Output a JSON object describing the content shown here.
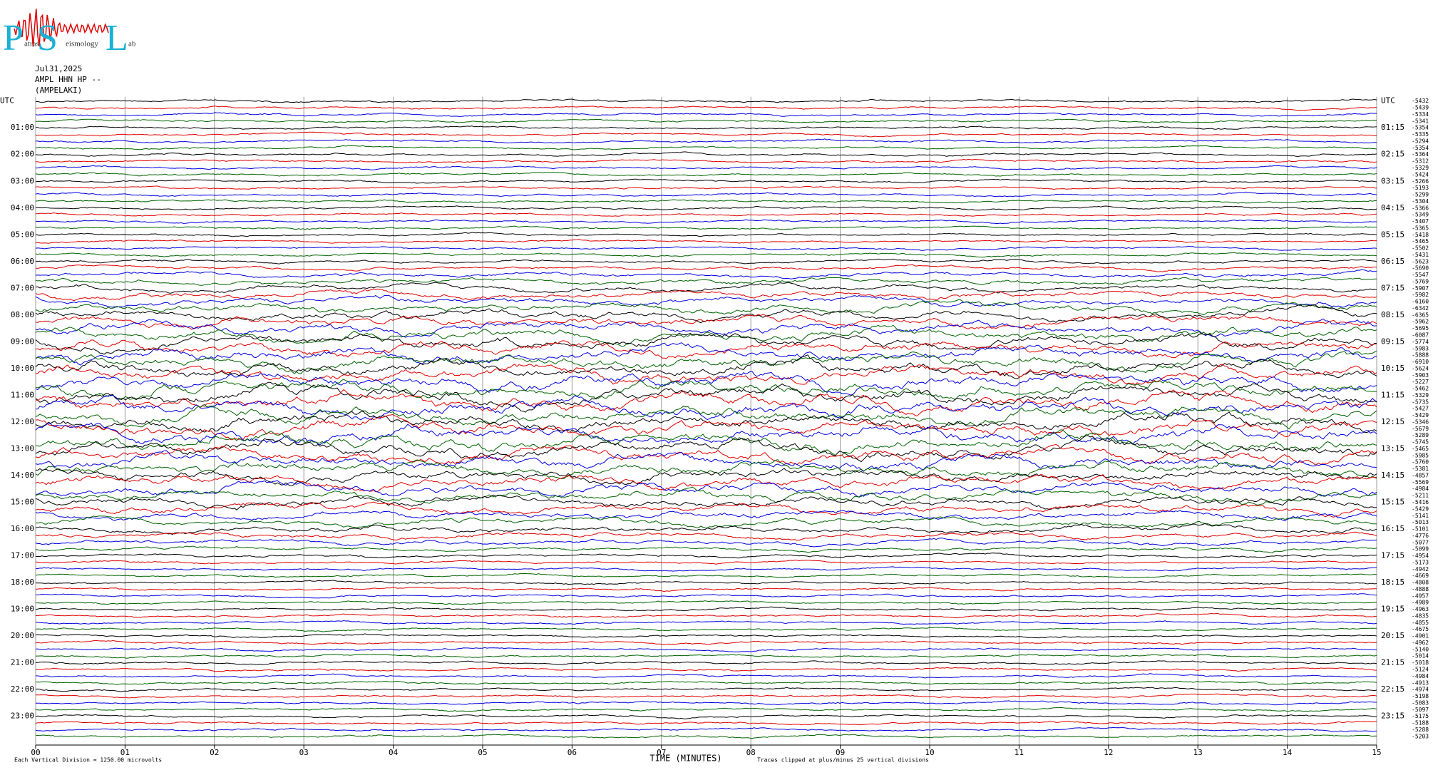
{
  "chart_data": {
    "type": "helicorder",
    "logo": {
      "letters": [
        "P",
        "S",
        "L"
      ],
      "words": [
        "atras",
        "eismology",
        "ab"
      ]
    },
    "date": "Jul31,2025",
    "station": "AMPL HHN HP --",
    "site": "(AMPELAKI)",
    "left_row_labels": [
      "UTC",
      "01:00",
      "02:00",
      "03:00",
      "04:00",
      "05:00",
      "06:00",
      "07:00",
      "08:00",
      "09:00",
      "10:00",
      "11:00",
      "12:00",
      "13:00",
      "14:00",
      "15:00",
      "16:00",
      "17:00",
      "18:00",
      "19:00",
      "20:00",
      "21:00",
      "22:00",
      "23:00"
    ],
    "right_row_labels": [
      "UTC",
      "01:15",
      "02:15",
      "03:15",
      "04:15",
      "05:15",
      "06:15",
      "07:15",
      "08:15",
      "09:15",
      "10:15",
      "11:15",
      "12:15",
      "13:15",
      "14:15",
      "15:15",
      "16:15",
      "17:15",
      "18:15",
      "19:15",
      "20:15",
      "21:15",
      "22:15",
      "23:15"
    ],
    "trace_means": [
      -5432,
      -5439,
      -5334,
      -5341,
      -5354,
      -5335,
      -5294,
      -5354,
      -5364,
      -5312,
      -5329,
      -5424,
      -5266,
      -5193,
      -5299,
      -5304,
      -5366,
      -5349,
      -5407,
      -5365,
      -5418,
      -5465,
      -5502,
      -5431,
      -5623,
      -5690,
      -5547,
      -5769,
      -5907,
      -5982,
      -6160,
      -6342,
      -6365,
      -5962,
      -5695,
      -6087,
      -5774,
      -5983,
      -5888,
      -6910,
      -5624,
      -5903,
      -5227,
      -5462,
      -5329,
      -5735,
      -5427,
      -5429,
      -5346,
      -5679,
      -5289,
      -5745,
      -5465,
      -5985,
      -5760,
      -5381,
      -4857,
      -5569,
      -4984,
      -5211,
      -5416,
      -5429,
      -5141,
      -5013,
      -5101,
      -4776,
      -5077,
      -5099,
      -4954,
      -5173,
      -4942,
      -4669,
      -4808,
      -4888,
      -4957,
      -4989,
      -4963,
      -4835,
      -4855,
      -4675,
      -4901,
      -4962,
      -5140,
      -5014,
      -5018,
      -5124,
      -4984,
      -4913,
      -4974,
      -5198,
      -5083,
      -5097,
      -5175,
      -5188,
      -5288,
      -5203
    ],
    "trace_colors": [
      "#000000",
      "#e00000",
      "#0000e0",
      "#006400"
    ],
    "xlim": [
      0,
      15
    ],
    "xticks": [
      {
        "value": 0,
        "label": "00"
      },
      {
        "value": 1,
        "label": "01"
      },
      {
        "value": 2,
        "label": "02"
      },
      {
        "value": 3,
        "label": "03"
      },
      {
        "value": 4,
        "label": "04"
      },
      {
        "value": 5,
        "label": "05"
      },
      {
        "value": 6,
        "label": "06"
      },
      {
        "value": 7,
        "label": "07"
      },
      {
        "value": 8,
        "label": "08"
      },
      {
        "value": 9,
        "label": "09"
      },
      {
        "value": 10,
        "label": "10"
      },
      {
        "value": 11,
        "label": "11"
      },
      {
        "value": 12,
        "label": "12"
      },
      {
        "value": 13,
        "label": "13"
      },
      {
        "value": 14,
        "label": "14"
      },
      {
        "value": 15,
        "label": "15"
      }
    ],
    "x_label": "TIME (MINUTES)",
    "scale_note": "Each Vertical Division = 1250.00 microvolts",
    "clip_note": "Traces clipped at plus/minus 25 vertical divisions",
    "grid": true
  }
}
